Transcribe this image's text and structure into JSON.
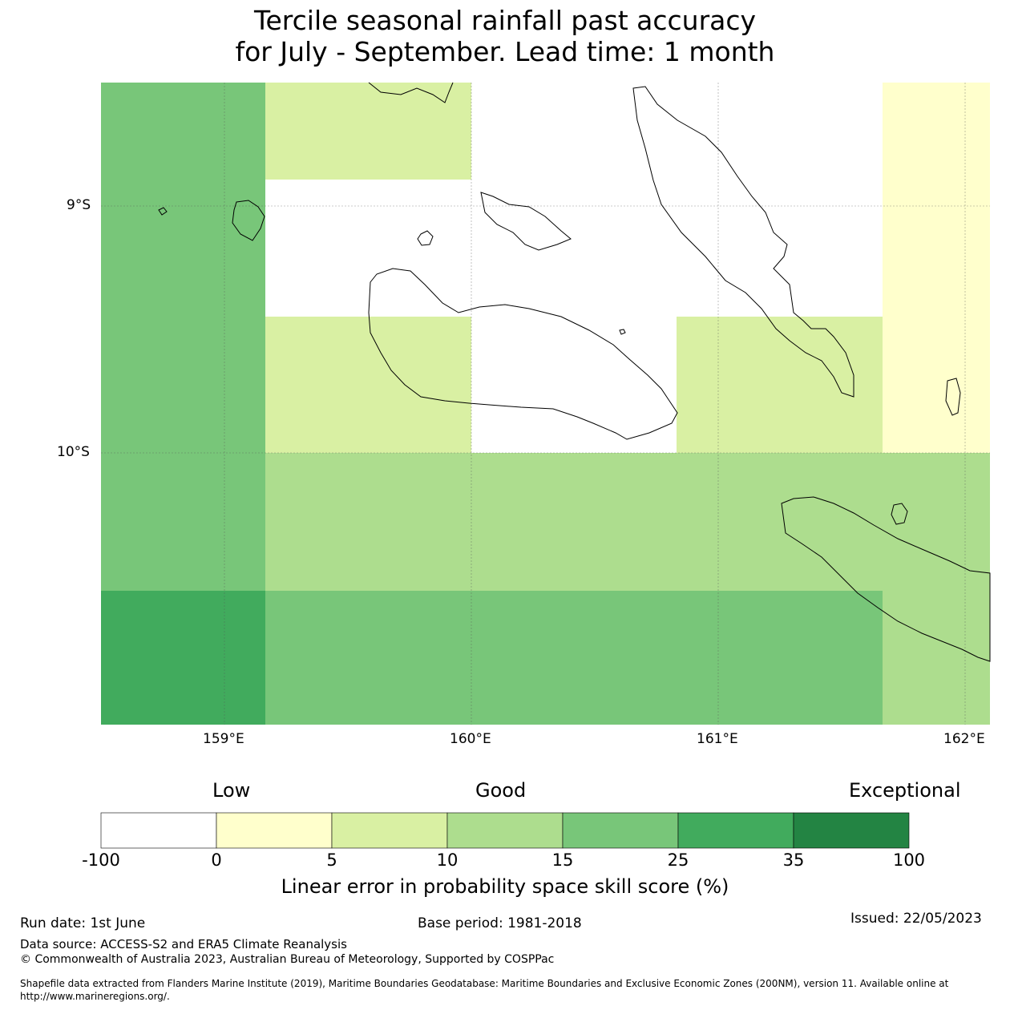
{
  "title_line1": "Tercile seasonal rainfall past accuracy",
  "title_line2": "for July - September. Lead time: 1 month",
  "map": {
    "lat_labels": [
      "9°S",
      "10°S"
    ],
    "lon_labels": [
      "159°E",
      "160°E",
      "161°E",
      "162°E"
    ],
    "cells": [
      {
        "lon": [
          158.5,
          159.17
        ],
        "lat": [
          -8.5,
          -11.1
        ],
        "category": 5
      },
      {
        "lon": [
          159.17,
          160.0
        ],
        "lat": [
          -8.5,
          -8.89
        ],
        "category": 3
      },
      {
        "lon": [
          161.67,
          162.1
        ],
        "lat": [
          -8.5,
          -10.0
        ],
        "category": 2
      },
      {
        "lon": [
          159.17,
          160.0
        ],
        "lat": [
          -9.44,
          -10.0
        ],
        "category": 3
      },
      {
        "lon": [
          160.83,
          161.67
        ],
        "lat": [
          -9.44,
          -10.0
        ],
        "category": 3
      },
      {
        "lon": [
          159.17,
          162.1
        ],
        "lat": [
          -10.0,
          -10.56
        ],
        "category": 4
      },
      {
        "lon": [
          161.67,
          162.1
        ],
        "lat": [
          -10.56,
          -11.1
        ],
        "category": 4
      },
      {
        "lon": [
          159.17,
          161.67
        ],
        "lat": [
          -10.56,
          -11.1
        ],
        "category": 5
      },
      {
        "lon": [
          158.5,
          159.17
        ],
        "lat": [
          -10.56,
          -11.1
        ],
        "category": 6
      }
    ]
  },
  "colorbar": {
    "words": [
      "Low",
      "Good",
      "Exceptional"
    ],
    "ticks": [
      "-100",
      "0",
      "5",
      "10",
      "15",
      "25",
      "35",
      "100"
    ],
    "colors": [
      "#ffffff",
      "#ffffcc",
      "#d9f0a3",
      "#addd8e",
      "#78c679",
      "#41ab5d",
      "#238443"
    ],
    "xlabel": "Linear error in probability space skill score (%)"
  },
  "footer": {
    "run_date": "Run date: 1st June",
    "base_period": "Base period: 1981-2018",
    "issued": "Issued: 22/05/2023",
    "data_source": "Data source: ACCESS-S2 and ERA5 Climate Reanalysis",
    "copyright": "© Commonwealth of Australia 2023, Australian Bureau of Meteorology, Supported by COSPPac",
    "shapefile1": "Shapefile data extracted from Flanders Marine Institute (2019), Maritime Boundaries Geodatabase: Maritime Boundaries and Exclusive Economic Zones (200NM), version 11. Available online at",
    "shapefile2": "http://www.marineregions.org/."
  }
}
